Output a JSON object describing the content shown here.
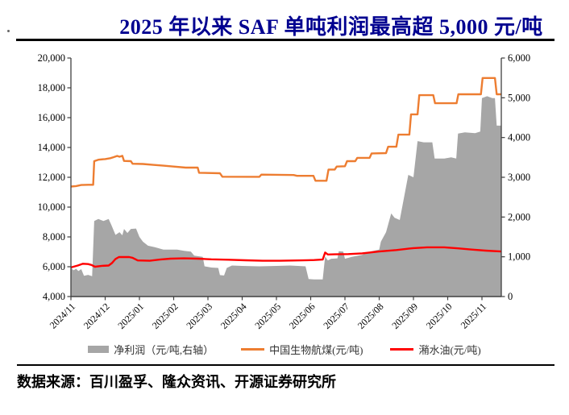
{
  "title": "2025 年以来 SAF 单吨利润最高超 5,000 元/吨",
  "title_color": "#000090",
  "footer": {
    "source_text": "数据来源：百川盈孚、隆众资讯、开源证券研究所"
  },
  "colors": {
    "net_profit_fill": "#A6A6A6",
    "bio_jet_line": "#ED7D31",
    "swill_oil_line": "#FF0000",
    "axis": "#404040",
    "tick_text": "#000000"
  },
  "chart_data": {
    "type": "area+line",
    "title": "2025 年以来 SAF 单吨利润最高超 5,000 元/吨",
    "x_unit": "months since 2024/11 (0 = 2024/11, 1 = 2024/12, ...)",
    "x_domain": [
      0,
      12.56
    ],
    "grid": "off",
    "legend_position": "bottom",
    "x_axis": {
      "tick_labels": [
        "2024/11",
        "2024/12",
        "2025/01",
        "2025/02",
        "2025/03",
        "2025/04",
        "2025/05",
        "2025/06",
        "2025/07",
        "2025/08",
        "2025/09",
        "2025/10",
        "2025/11"
      ]
    },
    "left_axis": {
      "min": 4000,
      "max": 20000,
      "step": 2000,
      "tick_labels": [
        "4,000",
        "6,000",
        "8,000",
        "10,000",
        "12,000",
        "14,000",
        "16,000",
        "18,000",
        "20,000"
      ]
    },
    "right_axis": {
      "min": 0,
      "max": 6000,
      "step": 1000,
      "tick_labels": [
        "0",
        "1,000",
        "2,000",
        "3,000",
        "4,000",
        "5,000",
        "6,000"
      ]
    },
    "series": [
      {
        "id": "net-profit",
        "name": "净利润（元/吨,右轴）",
        "type": "area",
        "axis": "right",
        "color": "#A6A6A6",
        "points": [
          [
            0,
            720
          ],
          [
            0.08,
            660
          ],
          [
            0.15,
            700
          ],
          [
            0.22,
            640
          ],
          [
            0.3,
            690
          ],
          [
            0.38,
            520
          ],
          [
            0.5,
            545
          ],
          [
            0.62,
            510
          ],
          [
            0.68,
            1900
          ],
          [
            0.8,
            1950
          ],
          [
            0.95,
            1900
          ],
          [
            1.1,
            1950
          ],
          [
            1.18,
            1800
          ],
          [
            1.3,
            1550
          ],
          [
            1.42,
            1620
          ],
          [
            1.5,
            1540
          ],
          [
            1.55,
            1700
          ],
          [
            1.65,
            1600
          ],
          [
            1.75,
            1700
          ],
          [
            1.9,
            1710
          ],
          [
            2.0,
            1500
          ],
          [
            2.1,
            1380
          ],
          [
            2.25,
            1280
          ],
          [
            2.45,
            1240
          ],
          [
            2.7,
            1180
          ],
          [
            3.1,
            1180
          ],
          [
            3.3,
            1150
          ],
          [
            3.5,
            1130
          ],
          [
            3.6,
            1030
          ],
          [
            3.85,
            1000
          ],
          [
            3.9,
            760
          ],
          [
            4.1,
            730
          ],
          [
            4.3,
            720
          ],
          [
            4.35,
            540
          ],
          [
            4.47,
            530
          ],
          [
            4.55,
            720
          ],
          [
            4.7,
            780
          ],
          [
            5.0,
            770
          ],
          [
            5.5,
            760
          ],
          [
            6.0,
            770
          ],
          [
            6.4,
            780
          ],
          [
            6.85,
            760
          ],
          [
            6.94,
            440
          ],
          [
            7.1,
            430
          ],
          [
            7.35,
            430
          ],
          [
            7.42,
            1010
          ],
          [
            7.5,
            910
          ],
          [
            7.6,
            950
          ],
          [
            7.78,
            960
          ],
          [
            7.82,
            1140
          ],
          [
            7.95,
            1130
          ],
          [
            8.0,
            950
          ],
          [
            8.2,
            1000
          ],
          [
            8.5,
            1050
          ],
          [
            8.75,
            1135
          ],
          [
            9.0,
            1180
          ],
          [
            9.05,
            1380
          ],
          [
            9.2,
            1620
          ],
          [
            9.35,
            2090
          ],
          [
            9.45,
            1980
          ],
          [
            9.6,
            1925
          ],
          [
            9.85,
            3060
          ],
          [
            10.0,
            3000
          ],
          [
            10.12,
            3910
          ],
          [
            10.3,
            3880
          ],
          [
            10.55,
            3880
          ],
          [
            10.62,
            3470
          ],
          [
            10.9,
            3470
          ],
          [
            11.1,
            3500
          ],
          [
            11.25,
            3470
          ],
          [
            11.3,
            4100
          ],
          [
            11.5,
            4130
          ],
          [
            11.8,
            4110
          ],
          [
            11.95,
            4150
          ],
          [
            12.0,
            4990
          ],
          [
            12.15,
            5040
          ],
          [
            12.3,
            4990
          ],
          [
            12.38,
            4990
          ],
          [
            12.43,
            4300
          ],
          [
            12.56,
            4300
          ]
        ]
      },
      {
        "id": "bio-jet-fuel",
        "name": "中国生物航煤(元/吨)",
        "type": "line",
        "axis": "left",
        "color": "#ED7D31",
        "points": [
          [
            0,
            11380
          ],
          [
            0.15,
            11410
          ],
          [
            0.3,
            11480
          ],
          [
            0.5,
            11500
          ],
          [
            0.65,
            11500
          ],
          [
            0.68,
            13080
          ],
          [
            0.8,
            13180
          ],
          [
            1.0,
            13220
          ],
          [
            1.15,
            13280
          ],
          [
            1.25,
            13350
          ],
          [
            1.35,
            13430
          ],
          [
            1.42,
            13380
          ],
          [
            1.5,
            13440
          ],
          [
            1.55,
            13100
          ],
          [
            1.75,
            13080
          ],
          [
            1.8,
            12910
          ],
          [
            2.1,
            12890
          ],
          [
            2.4,
            12830
          ],
          [
            2.7,
            12780
          ],
          [
            3.0,
            12720
          ],
          [
            3.35,
            12650
          ],
          [
            3.7,
            12650
          ],
          [
            3.74,
            12300
          ],
          [
            4.35,
            12270
          ],
          [
            4.42,
            12040
          ],
          [
            5.5,
            12030
          ],
          [
            5.56,
            12180
          ],
          [
            6.5,
            12150
          ],
          [
            6.6,
            12100
          ],
          [
            7.08,
            12100
          ],
          [
            7.14,
            11770
          ],
          [
            7.46,
            11770
          ],
          [
            7.52,
            12520
          ],
          [
            7.7,
            12520
          ],
          [
            7.76,
            12720
          ],
          [
            8.0,
            12740
          ],
          [
            8.06,
            13080
          ],
          [
            8.3,
            13080
          ],
          [
            8.36,
            13300
          ],
          [
            8.72,
            13300
          ],
          [
            8.78,
            13600
          ],
          [
            9.2,
            13620
          ],
          [
            9.26,
            14050
          ],
          [
            9.5,
            14050
          ],
          [
            9.56,
            14860
          ],
          [
            9.88,
            14860
          ],
          [
            9.93,
            16220
          ],
          [
            10.12,
            16220
          ],
          [
            10.17,
            17510
          ],
          [
            10.58,
            17510
          ],
          [
            10.63,
            16970
          ],
          [
            11.26,
            16970
          ],
          [
            11.31,
            17570
          ],
          [
            11.97,
            17570
          ],
          [
            12.02,
            18660
          ],
          [
            12.38,
            18660
          ],
          [
            12.43,
            17570
          ],
          [
            12.56,
            17570
          ]
        ]
      },
      {
        "id": "swill-oil",
        "name": "潲水油(元/吨)",
        "type": "line",
        "axis": "left",
        "color": "#FF0000",
        "points": [
          [
            0,
            5950
          ],
          [
            0.2,
            6080
          ],
          [
            0.35,
            6200
          ],
          [
            0.5,
            6180
          ],
          [
            0.6,
            6120
          ],
          [
            0.7,
            6000
          ],
          [
            0.9,
            6060
          ],
          [
            1.1,
            6080
          ],
          [
            1.2,
            6250
          ],
          [
            1.3,
            6520
          ],
          [
            1.4,
            6650
          ],
          [
            1.7,
            6650
          ],
          [
            1.8,
            6600
          ],
          [
            1.95,
            6420
          ],
          [
            2.3,
            6400
          ],
          [
            2.6,
            6480
          ],
          [
            2.9,
            6540
          ],
          [
            3.3,
            6560
          ],
          [
            3.7,
            6540
          ],
          [
            4.1,
            6500
          ],
          [
            4.6,
            6470
          ],
          [
            5.1,
            6430
          ],
          [
            5.6,
            6400
          ],
          [
            6.1,
            6400
          ],
          [
            6.6,
            6420
          ],
          [
            6.9,
            6440
          ],
          [
            7.1,
            6450
          ],
          [
            7.35,
            6480
          ],
          [
            7.42,
            6950
          ],
          [
            7.5,
            6820
          ],
          [
            7.7,
            6830
          ],
          [
            8.1,
            6850
          ],
          [
            8.5,
            6900
          ],
          [
            9.0,
            7020
          ],
          [
            9.5,
            7120
          ],
          [
            10.0,
            7250
          ],
          [
            10.4,
            7300
          ],
          [
            10.9,
            7300
          ],
          [
            11.3,
            7230
          ],
          [
            11.7,
            7150
          ],
          [
            12.1,
            7080
          ],
          [
            12.56,
            7020
          ]
        ]
      }
    ]
  }
}
